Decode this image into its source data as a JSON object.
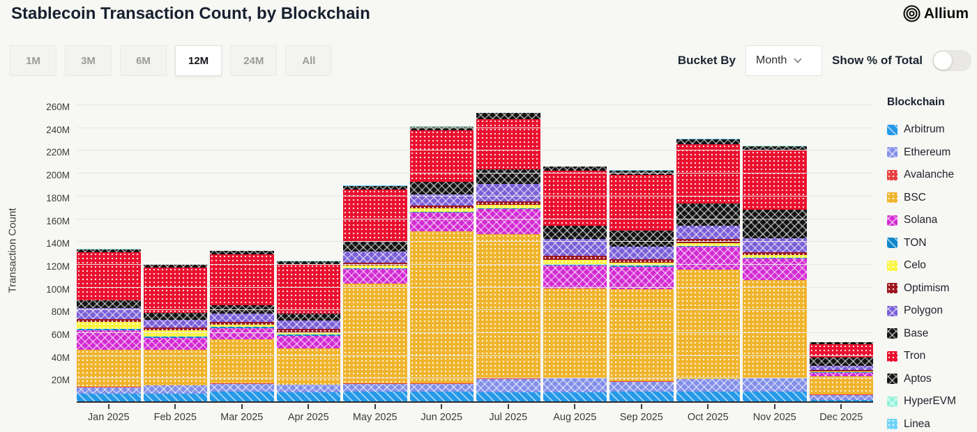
{
  "header": {
    "title": "Stablecoin Transaction Count, by Blockchain",
    "brand": "Allium"
  },
  "toolbar": {
    "ranges": [
      "1M",
      "3M",
      "6M",
      "12M",
      "24M",
      "All"
    ],
    "selected_range": "12M",
    "bucket_by_label": "Bucket By",
    "bucket_value": "Month",
    "show_pct_label": "Show % of Total",
    "show_pct_on": false
  },
  "chart_data": {
    "type": "bar",
    "stacked": true,
    "title": "Stablecoin Transaction Count, by Blockchain",
    "ylabel": "Transaction Count",
    "unit": "M transactions",
    "ylim": [
      0,
      268
    ],
    "ytick_step": 20,
    "yticks": [
      "20M",
      "40M",
      "60M",
      "80M",
      "100M",
      "120M",
      "140M",
      "160M",
      "180M",
      "200M",
      "220M",
      "240M",
      "260M"
    ],
    "grid": true,
    "legend_title": "Blockchain",
    "legend_position": "right",
    "categories": [
      "Jan 2025",
      "Feb 2025",
      "Mar 2025",
      "Apr 2025",
      "May 2025",
      "Jun 2025",
      "Jul 2025",
      "Aug 2025",
      "Sep 2025",
      "Oct 2025",
      "Nov 2025",
      "Dec 2025"
    ],
    "series": [
      {
        "name": "Arbitrum",
        "color": "#2499e8",
        "pattern": "diag",
        "values": [
          6.6,
          6.6,
          8.7,
          7.7,
          8.7,
          8.7,
          7.7,
          8.1,
          8.7,
          8.7,
          8.8,
          1.5
        ]
      },
      {
        "name": "Ethereum",
        "color": "#828fe9",
        "pattern": "cross",
        "values": [
          5.6,
          7.2,
          6.5,
          6.7,
          6.5,
          6.5,
          11.8,
          11.8,
          8.5,
          10.6,
          11.1,
          4.1
        ]
      },
      {
        "name": "Avalanche",
        "color": "#e84142",
        "pattern": "dots",
        "values": [
          0.5,
          0.5,
          0.5,
          0.5,
          0.5,
          0.5,
          0.5,
          0.5,
          0.5,
          0.5,
          0.5,
          0.3
        ]
      },
      {
        "name": "BSC",
        "color": "#f0b42c",
        "pattern": "dots",
        "values": [
          32.7,
          31.0,
          39.0,
          31.6,
          87.5,
          133.6,
          126.7,
          78.9,
          81.0,
          95.8,
          85.9,
          16.0
        ]
      },
      {
        "name": "Solana",
        "color": "#d32bd3",
        "pattern": "cross",
        "values": [
          17.0,
          10.2,
          9.8,
          11.3,
          12.9,
          16.3,
          21.9,
          19.8,
          19.4,
          20.0,
          19.0,
          3.5
        ]
      },
      {
        "name": "TON",
        "color": "#0f86c9",
        "pattern": "diag",
        "values": [
          1.5,
          1.7,
          1.0,
          1.0,
          1.0,
          1.1,
          1.2,
          1.2,
          1.0,
          1.0,
          1.0,
          0.3
        ]
      },
      {
        "name": "Celo",
        "color": "#f9f542",
        "pattern": "dots",
        "values": [
          6.1,
          5.5,
          2.1,
          2.1,
          2.0,
          3.0,
          2.5,
          4.0,
          2.5,
          2.5,
          2.0,
          0.4
        ]
      },
      {
        "name": "Optimism",
        "color": "#9e1620",
        "pattern": "dots",
        "values": [
          2.0,
          2.0,
          2.5,
          2.6,
          2.5,
          2.5,
          3.5,
          3.7,
          3.1,
          3.7,
          2.5,
          1.3
        ]
      },
      {
        "name": "Polygon",
        "color": "#7b5fd8",
        "pattern": "cross",
        "values": [
          10.1,
          7.2,
          7.1,
          7.6,
          9.8,
          9.8,
          14.9,
          14.3,
          11.2,
          11.6,
          12.7,
          3.7
        ]
      },
      {
        "name": "Base",
        "color": "#131313",
        "pattern": "cross",
        "values": [
          6.4,
          6.1,
          7.2,
          6.1,
          9.2,
          10.6,
          12.9,
          11.8,
          13.9,
          19.5,
          25.1,
          7.2
        ]
      },
      {
        "name": "Tron",
        "color": "#ea102e",
        "pattern": "dots",
        "values": [
          42.6,
          39.3,
          45.0,
          43.5,
          45.6,
          45.7,
          44.4,
          48.4,
          49.1,
          52.1,
          51.5,
          11.7
        ]
      },
      {
        "name": "Aptos",
        "color": "#131313",
        "pattern": "cross",
        "values": [
          2.6,
          2.6,
          2.7,
          2.5,
          2.9,
          3.0,
          5.1,
          3.5,
          3.7,
          4.1,
          4.1,
          2.0
        ]
      },
      {
        "name": "HyperEVM",
        "color": "#93f2da",
        "pattern": "cross",
        "values": [
          0.2,
          0.2,
          0.2,
          0.2,
          0.2,
          0.2,
          0.2,
          0.2,
          0.2,
          0.2,
          0.2,
          0.1
        ]
      },
      {
        "name": "Linea",
        "color": "#6fd4f8",
        "pattern": "dots",
        "values": [
          0.2,
          0.2,
          0.2,
          0.2,
          0.2,
          0.2,
          0.2,
          0.2,
          0.2,
          0.2,
          0.2,
          0.1
        ]
      }
    ],
    "totals": [
      134.1,
      120.3,
      132.5,
      123.6,
      189.5,
      241.7,
      253.5,
      206.4,
      202.8,
      230.9,
      224.6,
      52.2
    ]
  }
}
